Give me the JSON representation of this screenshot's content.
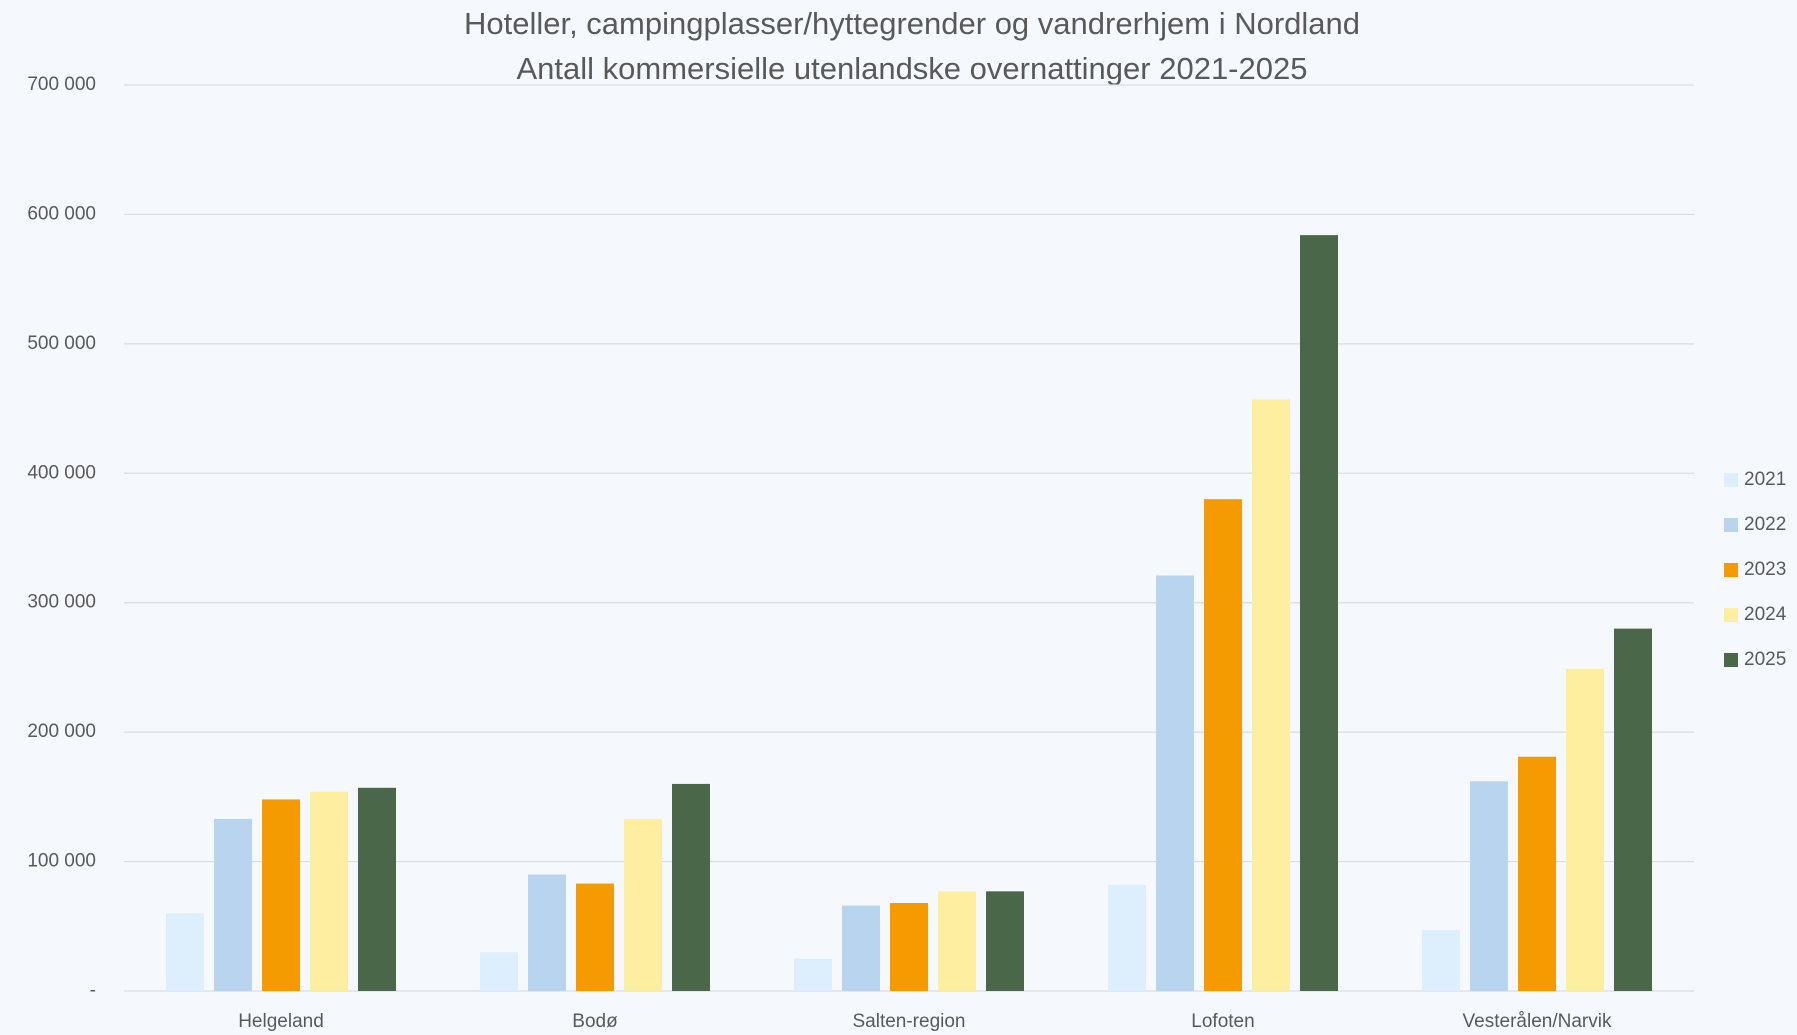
{
  "chart_data": {
    "type": "bar",
    "title": "Hoteller, campingplasser/hyttegrender og vandrerhjem i Nordland",
    "subtitle": "Antall kommersielle utenlandske overnattinger 2021-2025",
    "categories": [
      "Helgeland",
      "Bodø",
      "Salten-region",
      "Lofoten",
      "Vesterålen/Narvik"
    ],
    "series": [
      {
        "name": "2021",
        "color": "#ddeefc",
        "values": [
          60000,
          30000,
          25000,
          82000,
          47000
        ]
      },
      {
        "name": "2022",
        "color": "#b8d4ee",
        "values": [
          133000,
          90000,
          66000,
          321000,
          162000
        ]
      },
      {
        "name": "2023",
        "color": "#f59a00",
        "values": [
          148000,
          83000,
          68000,
          380000,
          181000
        ]
      },
      {
        "name": "2024",
        "color": "#fdeea0",
        "values": [
          154000,
          133000,
          77000,
          457000,
          249000
        ]
      },
      {
        "name": "2025",
        "color": "#4a6749",
        "values": [
          157000,
          160000,
          77000,
          584000,
          280000
        ]
      }
    ],
    "ylim": [
      0,
      700000
    ],
    "yticks": [
      {
        "value": 0,
        "label": "-"
      },
      {
        "value": 100000,
        "label": "100 000"
      },
      {
        "value": 200000,
        "label": "200 000"
      },
      {
        "value": 300000,
        "label": "300 000"
      },
      {
        "value": 400000,
        "label": "400 000"
      },
      {
        "value": 500000,
        "label": "500 000"
      },
      {
        "value": 600000,
        "label": "600 000"
      },
      {
        "value": 700000,
        "label": "700 000"
      }
    ],
    "grid": true,
    "legend": "right"
  }
}
